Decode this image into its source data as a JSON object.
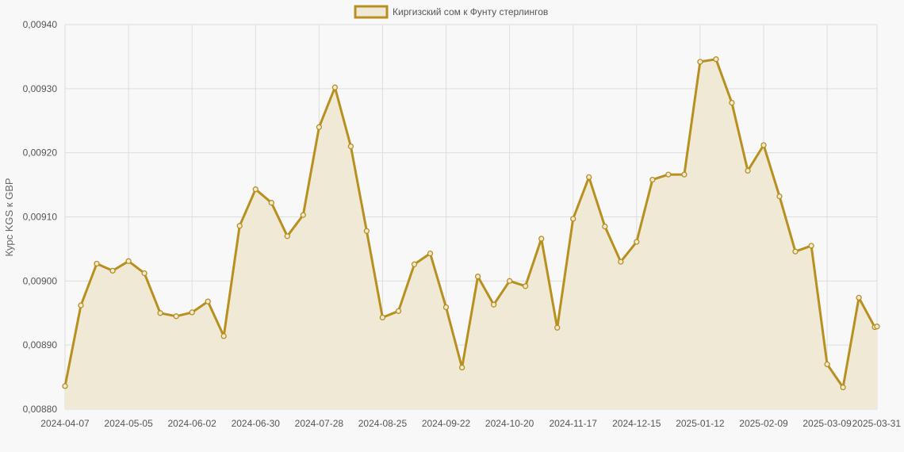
{
  "chart_data": {
    "type": "line",
    "ylabel": "Курс KGS к GBP",
    "ylim": [
      0.0088,
      0.0094
    ],
    "y_ticks": [
      "0,00880",
      "0,00890",
      "0,00900",
      "0,00910",
      "0,00920",
      "0,00930",
      "0,00940"
    ],
    "x_tick_labels": [
      "2024-04-07",
      "2024-05-05",
      "2024-06-02",
      "2024-06-30",
      "2024-07-28",
      "2024-08-25",
      "2024-09-22",
      "2024-10-20",
      "2024-11-17",
      "2024-12-15",
      "2025-01-12",
      "2025-02-09",
      "2025-03-09",
      "2025-03-31"
    ],
    "grid": true,
    "legend": {
      "position": "top-center"
    },
    "colors": {
      "line": "#b8901f",
      "fill": "#efe9d6",
      "grid": "#dddddd"
    },
    "series": [
      {
        "name": "Киргизский сом к Фунту стерлингов",
        "x": [
          "2024-04-07",
          "2024-04-14",
          "2024-04-21",
          "2024-04-28",
          "2024-05-05",
          "2024-05-12",
          "2024-05-19",
          "2024-05-26",
          "2024-06-02",
          "2024-06-09",
          "2024-06-16",
          "2024-06-23",
          "2024-06-30",
          "2024-07-07",
          "2024-07-14",
          "2024-07-21",
          "2024-07-28",
          "2024-08-04",
          "2024-08-11",
          "2024-08-18",
          "2024-08-25",
          "2024-09-01",
          "2024-09-08",
          "2024-09-15",
          "2024-09-22",
          "2024-09-29",
          "2024-10-06",
          "2024-10-13",
          "2024-10-20",
          "2024-10-27",
          "2024-11-03",
          "2024-11-10",
          "2024-11-17",
          "2024-11-24",
          "2024-12-01",
          "2024-12-08",
          "2024-12-15",
          "2024-12-22",
          "2024-12-29",
          "2025-01-05",
          "2025-01-12",
          "2025-01-19",
          "2025-01-26",
          "2025-02-02",
          "2025-02-09",
          "2025-02-16",
          "2025-02-23",
          "2025-03-02",
          "2025-03-09",
          "2025-03-16",
          "2025-03-23",
          "2025-03-30",
          "2025-03-31"
        ],
        "values": [
          0.008836,
          0.008962,
          0.009027,
          0.009016,
          0.009031,
          0.009012,
          0.00895,
          0.008945,
          0.008951,
          0.008968,
          0.008914,
          0.009086,
          0.009143,
          0.009122,
          0.00907,
          0.009103,
          0.00924,
          0.009302,
          0.00921,
          0.009078,
          0.008943,
          0.008953,
          0.009026,
          0.009043,
          0.008959,
          0.008865,
          0.009007,
          0.008963,
          0.009,
          0.008992,
          0.009066,
          0.008927,
          0.009097,
          0.009162,
          0.009085,
          0.00903,
          0.009061,
          0.009158,
          0.009166,
          0.009166,
          0.009342,
          0.009346,
          0.009278,
          0.009172,
          0.009212,
          0.009132,
          0.009046,
          0.009055,
          0.00887,
          0.008834,
          0.008974,
          0.008928,
          0.008929
        ]
      }
    ]
  }
}
